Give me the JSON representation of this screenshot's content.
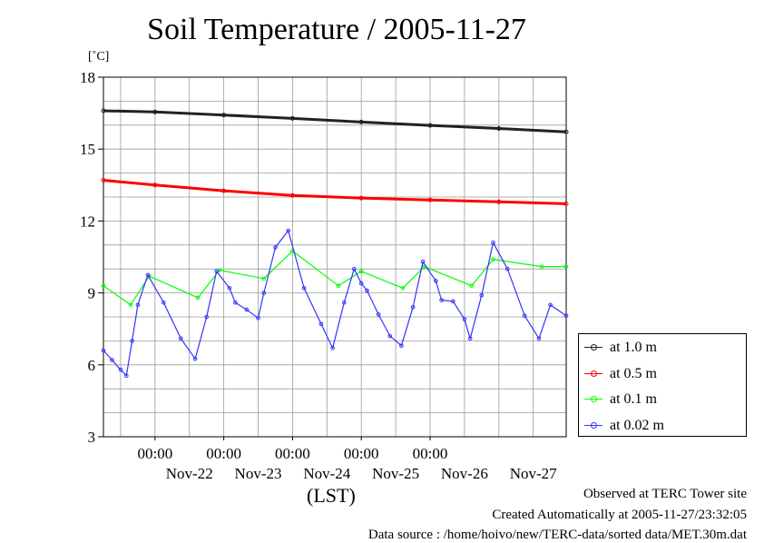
{
  "chart_data": {
    "type": "line",
    "title": "Soil Temperature / 2005-11-27",
    "ylabel": "[˚C]",
    "xlabel": "(LST)",
    "ylim": [
      3,
      18
    ],
    "y_ticks": [
      3,
      6,
      9,
      12,
      15,
      18
    ],
    "xlim": [
      "2005-11-21 06:00",
      "2005-11-27 23:30"
    ],
    "x_tick_labels": [
      "00:00",
      "00:00",
      "00:00",
      "00:00",
      "00:00"
    ],
    "x_tick_times": [
      "2005-11-22 00:00",
      "2005-11-23 00:00",
      "2005-11-24 00:00",
      "2005-11-25 00:00",
      "2005-11-26 00:00"
    ],
    "date_labels": [
      "Nov-22",
      "Nov-23",
      "Nov-24",
      "Nov-25",
      "Nov-26",
      "Nov-27"
    ],
    "date_label_times": [
      "2005-11-22 12:00",
      "2005-11-23 12:00",
      "2005-11-24 12:00",
      "2005-11-25 12:00",
      "2005-11-26 12:00",
      "2005-11-27 12:00"
    ],
    "grid": true,
    "legend_position": "right",
    "series": [
      {
        "name": "at 1.0 m",
        "color": "#222222",
        "x": [
          "2005-11-21 06:00",
          "2005-11-22 00:00",
          "2005-11-23 00:00",
          "2005-11-24 00:00",
          "2005-11-25 00:00",
          "2005-11-26 00:00",
          "2005-11-27 00:00",
          "2005-11-27 23:30"
        ],
        "values": [
          16.6,
          16.55,
          16.42,
          16.28,
          16.13,
          15.99,
          15.86,
          15.72
        ]
      },
      {
        "name": "at 0.5 m",
        "color": "#ff0000",
        "x": [
          "2005-11-21 06:00",
          "2005-11-22 00:00",
          "2005-11-23 00:00",
          "2005-11-24 00:00",
          "2005-11-25 00:00",
          "2005-11-26 00:00",
          "2005-11-27 00:00",
          "2005-11-27 23:30"
        ],
        "values": [
          13.7,
          13.5,
          13.26,
          13.07,
          12.96,
          12.88,
          12.8,
          12.72
        ]
      },
      {
        "name": "at 0.1 m",
        "color": "#00ff00",
        "x": [
          "2005-11-21 06:00",
          "2005-11-21 15:30",
          "2005-11-21 22:00",
          "2005-11-22 15:00",
          "2005-11-22 22:30",
          "2005-11-23 14:00",
          "2005-11-24 00:00",
          "2005-11-24 16:00",
          "2005-11-25 00:00",
          "2005-11-25 14:30",
          "2005-11-25 22:00",
          "2005-11-26 14:30",
          "2005-11-26 22:00",
          "2005-11-27 15:00",
          "2005-11-27 23:30"
        ],
        "values": [
          9.3,
          8.5,
          9.7,
          8.8,
          9.95,
          9.6,
          10.75,
          9.3,
          9.9,
          9.2,
          10.1,
          9.3,
          10.4,
          10.1,
          10.1
        ]
      },
      {
        "name": "at 0.02 m",
        "color": "#3333ff",
        "x": [
          "2005-11-21 06:00",
          "2005-11-21 09:00",
          "2005-11-21 12:00",
          "2005-11-21 14:00",
          "2005-11-21 16:00",
          "2005-11-21 18:00",
          "2005-11-21 21:30",
          "2005-11-22 03:00",
          "2005-11-22 09:00",
          "2005-11-22 14:00",
          "2005-11-22 18:00",
          "2005-11-22 21:30",
          "2005-11-23 02:00",
          "2005-11-23 04:00",
          "2005-11-23 08:00",
          "2005-11-23 12:00",
          "2005-11-23 14:00",
          "2005-11-23 18:00",
          "2005-11-23 22:30",
          "2005-11-24 04:00",
          "2005-11-24 10:00",
          "2005-11-24 14:00",
          "2005-11-24 18:00",
          "2005-11-24 21:30",
          "2005-11-25 00:00",
          "2005-11-25 02:00",
          "2005-11-25 06:00",
          "2005-11-25 10:00",
          "2005-11-25 14:00",
          "2005-11-25 18:00",
          "2005-11-25 21:30",
          "2005-11-26 02:00",
          "2005-11-26 04:00",
          "2005-11-26 08:00",
          "2005-11-26 12:00",
          "2005-11-26 14:00",
          "2005-11-26 18:00",
          "2005-11-26 22:00",
          "2005-11-27 03:00",
          "2005-11-27 09:00",
          "2005-11-27 14:00",
          "2005-11-27 18:00",
          "2005-11-27 23:30"
        ],
        "values": [
          6.6,
          6.2,
          5.8,
          5.55,
          7.0,
          8.5,
          9.75,
          8.6,
          7.1,
          6.25,
          8.0,
          9.9,
          9.2,
          8.6,
          8.3,
          7.95,
          9.0,
          10.9,
          11.6,
          9.2,
          7.7,
          6.7,
          8.6,
          10.0,
          9.4,
          9.1,
          8.1,
          7.2,
          6.8,
          8.4,
          10.3,
          9.5,
          8.7,
          8.65,
          7.9,
          7.1,
          8.9,
          11.1,
          10.0,
          8.05,
          7.1,
          8.5,
          8.05
        ]
      }
    ]
  },
  "footer": {
    "line1": "Observed at TERC Tower site",
    "line2": "Created Automatically at 2005-11-27/23:32:05",
    "line3": "Data source : /home/hoivo/new/TERC-data/sorted  data/MET.30m.dat"
  }
}
